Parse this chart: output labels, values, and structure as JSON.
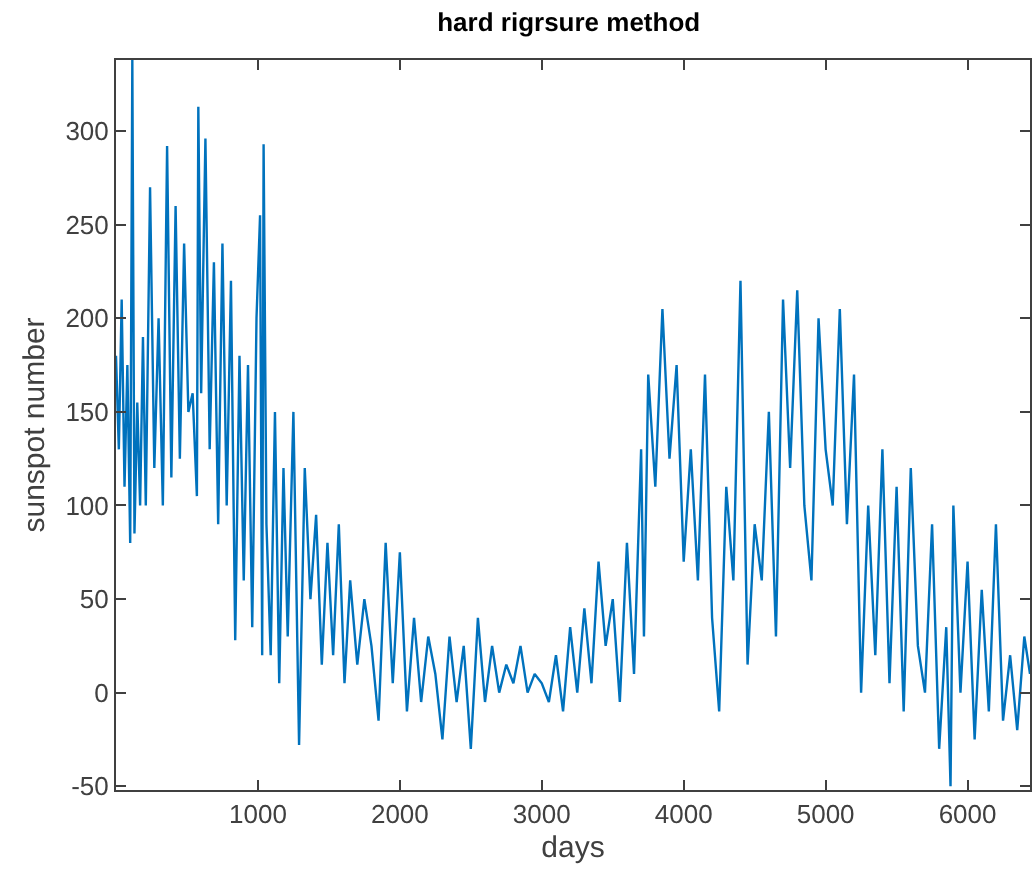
{
  "chart_data": {
    "type": "line",
    "title": "hard rigrsure method",
    "xlabel": "days",
    "ylabel": "sunspot number",
    "xlim": [
      0,
      6440
    ],
    "ylim": [
      -52,
      338
    ],
    "xticks": [
      1000,
      2000,
      3000,
      4000,
      5000,
      6000
    ],
    "yticks": [
      -50,
      0,
      50,
      100,
      150,
      200,
      250,
      300
    ],
    "grid": false,
    "series": [
      {
        "color": "#0072bd",
        "x": [
          0,
          20,
          40,
          60,
          80,
          100,
          115,
          130,
          150,
          170,
          190,
          210,
          240,
          270,
          300,
          330,
          360,
          390,
          420,
          450,
          480,
          510,
          540,
          570,
          580,
          600,
          630,
          660,
          690,
          720,
          750,
          780,
          810,
          840,
          870,
          900,
          930,
          960,
          990,
          1015,
          1030,
          1040,
          1060,
          1090,
          1120,
          1150,
          1180,
          1210,
          1250,
          1290,
          1330,
          1370,
          1410,
          1450,
          1490,
          1530,
          1570,
          1610,
          1650,
          1700,
          1750,
          1800,
          1850,
          1900,
          1950,
          2000,
          2050,
          2100,
          2150,
          2200,
          2250,
          2300,
          2350,
          2400,
          2450,
          2500,
          2550,
          2600,
          2650,
          2700,
          2750,
          2800,
          2850,
          2900,
          2950,
          3000,
          3050,
          3100,
          3150,
          3200,
          3250,
          3300,
          3350,
          3400,
          3450,
          3500,
          3550,
          3600,
          3650,
          3700,
          3720,
          3750,
          3800,
          3850,
          3900,
          3950,
          4000,
          4050,
          4100,
          4150,
          4200,
          4250,
          4300,
          4350,
          4400,
          4450,
          4500,
          4550,
          4600,
          4650,
          4700,
          4750,
          4800,
          4850,
          4900,
          4950,
          5000,
          5050,
          5100,
          5150,
          5200,
          5250,
          5300,
          5350,
          5400,
          5450,
          5500,
          5550,
          5600,
          5650,
          5700,
          5750,
          5800,
          5850,
          5880,
          5900,
          5950,
          6000,
          6050,
          6100,
          6150,
          6200,
          6250,
          6300,
          6350,
          6400,
          6440
        ],
        "values": [
          180,
          130,
          210,
          110,
          175,
          80,
          338,
          85,
          155,
          100,
          190,
          100,
          270,
          120,
          200,
          100,
          292,
          115,
          260,
          125,
          240,
          150,
          160,
          105,
          313,
          160,
          296,
          130,
          230,
          90,
          240,
          100,
          220,
          28,
          180,
          60,
          175,
          35,
          200,
          255,
          20,
          293,
          90,
          20,
          150,
          5,
          120,
          30,
          150,
          -28,
          120,
          50,
          95,
          15,
          80,
          20,
          90,
          5,
          60,
          15,
          50,
          25,
          -15,
          80,
          5,
          75,
          -10,
          40,
          -5,
          30,
          10,
          -25,
          30,
          -5,
          25,
          -30,
          40,
          -5,
          25,
          0,
          15,
          5,
          25,
          0,
          10,
          5,
          -5,
          20,
          -10,
          35,
          0,
          45,
          5,
          70,
          25,
          50,
          -5,
          80,
          10,
          130,
          30,
          170,
          110,
          205,
          125,
          175,
          70,
          130,
          60,
          170,
          40,
          -10,
          110,
          60,
          220,
          15,
          90,
          60,
          150,
          30,
          210,
          120,
          215,
          100,
          60,
          200,
          130,
          100,
          205,
          90,
          170,
          0,
          100,
          20,
          130,
          5,
          110,
          -10,
          120,
          25,
          0,
          90,
          -30,
          35,
          -50,
          100,
          0,
          70,
          -25,
          55,
          -10,
          90,
          -15,
          20,
          -20,
          30,
          10
        ]
      }
    ]
  }
}
